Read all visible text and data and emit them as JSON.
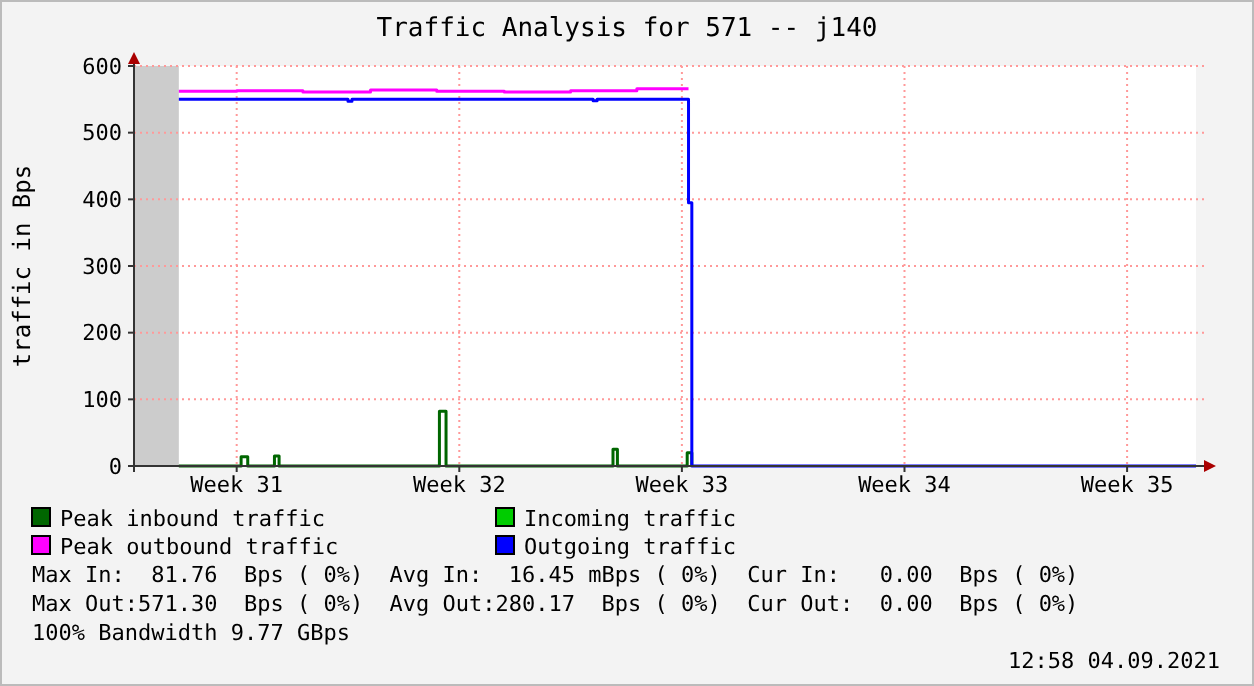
{
  "chart_data": {
    "type": "step",
    "title": "Traffic Analysis for 571 -- j140",
    "ylabel": "traffic in Bps",
    "xlim": [
      "2021-08-02T06:30",
      "2021-09-04T16:00"
    ],
    "xticks": [
      {
        "value": "2021-08-05T12:00",
        "label": "Week 31"
      },
      {
        "value": "2021-08-12T12:00",
        "label": "Week 32"
      },
      {
        "value": "2021-08-19T12:00",
        "label": "Week 33"
      },
      {
        "value": "2021-08-26T12:00",
        "label": "Week 34"
      },
      {
        "value": "2021-09-02T12:00",
        "label": "Week 35"
      }
    ],
    "ylim": [
      0,
      600
    ],
    "yticks": [
      0,
      100,
      200,
      300,
      400,
      500,
      600
    ],
    "grid": true,
    "legend": "bottom",
    "bands": [
      {
        "axis": "x",
        "from": "2021-08-02T06:30",
        "to": "2021-08-03T16:20",
        "color": "#cccccc"
      }
    ],
    "series": [
      {
        "name": "Peak inbound traffic",
        "color": "#006600",
        "x": [
          "2021-08-03T16:20",
          "2021-08-05T15:20",
          "2021-08-05T20:20",
          "2021-08-06T16:30",
          "2021-08-06T20:00",
          "2021-08-11T21:00",
          "2021-08-12T02:00",
          "2021-08-17T08:00",
          "2021-08-17T11:20",
          "2021-08-19T16:00",
          "2021-08-19T19:30"
        ],
        "values": [
          0,
          14,
          0,
          15,
          0,
          82,
          0,
          25,
          0,
          20,
          0
        ]
      },
      {
        "name": "Incoming traffic",
        "color": "#00cc00"
      },
      {
        "name": "Peak outbound traffic",
        "color": "#ff00ff",
        "x": [
          "2021-08-03T16:20",
          "2021-08-05T12:00",
          "2021-08-07T14:00",
          "2021-08-09T17:00",
          "2021-08-11T19:00",
          "2021-08-13T22:00",
          "2021-08-16T00:00",
          "2021-08-18T02:00",
          "2021-08-19T17:00"
        ],
        "values": [
          562,
          563,
          561,
          564,
          562,
          561,
          563,
          566,
          566
        ]
      },
      {
        "name": "Outgoing traffic",
        "color": "#0000ff",
        "x": [
          "2021-08-03T16:20",
          "2021-08-09T00:00",
          "2021-08-09T03:00",
          "2021-08-16T17:00",
          "2021-08-16T20:00",
          "2021-08-19T17:00",
          "2021-08-19T19:30",
          "2021-09-04T16:00"
        ],
        "values": [
          550,
          547,
          550,
          548,
          550,
          395,
          0,
          0
        ]
      }
    ],
    "annotations": [
      "Max In:  81.76  Bps ( 0%)  Avg In:  16.45 mBps ( 0%)  Cur In:   0.00  Bps ( 0%)",
      "Max Out:571.30  Bps ( 0%)  Avg Out:280.17  Bps ( 0%)  Cur Out:  0.00  Bps ( 0%)",
      "100% Bandwidth 9.77 GBps",
      "12:58 04.09.2021"
    ]
  }
}
